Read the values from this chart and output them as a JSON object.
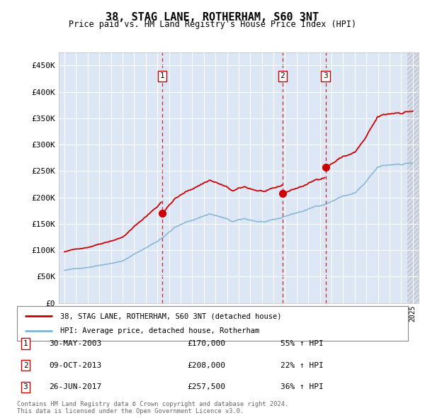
{
  "title": "38, STAG LANE, ROTHERHAM, S60 3NT",
  "subtitle": "Price paid vs. HM Land Registry's House Price Index (HPI)",
  "bg_color": "#dce6f5",
  "red_color": "#cc0000",
  "blue_color": "#7fb3d3",
  "ylim": [
    0,
    475000
  ],
  "yticks": [
    0,
    50000,
    100000,
    150000,
    200000,
    250000,
    300000,
    350000,
    400000,
    450000
  ],
  "ytick_labels": [
    "£0",
    "£50K",
    "£100K",
    "£150K",
    "£200K",
    "£250K",
    "£300K",
    "£350K",
    "£400K",
    "£450K"
  ],
  "xlim_start": 1994.5,
  "xlim_end": 2025.5,
  "sales": [
    {
      "num": 1,
      "date": "30-MAY-2003",
      "price": 170000,
      "pct": "55%",
      "dir": "↑",
      "x": 2003.41
    },
    {
      "num": 2,
      "date": "09-OCT-2013",
      "price": 208000,
      "pct": "22%",
      "dir": "↑",
      "x": 2013.77
    },
    {
      "num": 3,
      "date": "26-JUN-2017",
      "price": 257500,
      "pct": "36%",
      "dir": "↑",
      "x": 2017.48
    }
  ],
  "legend_line1": "38, STAG LANE, ROTHERHAM, S60 3NT (detached house)",
  "legend_line2": "HPI: Average price, detached house, Rotherham",
  "footer": "Contains HM Land Registry data © Crown copyright and database right 2024.\nThis data is licensed under the Open Government Licence v3.0.",
  "hatch_start": 2024.5
}
